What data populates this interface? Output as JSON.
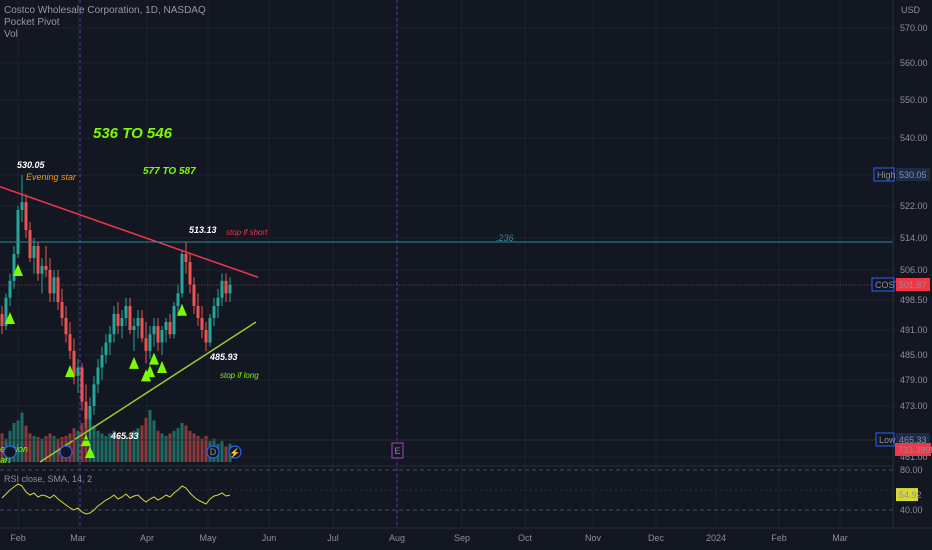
{
  "legend": {
    "symbol_line": "Costco Wholesale Corporation, 1D, NASDAQ",
    "indicator_1": "Pocket Pivot",
    "indicator_2": "Vol"
  },
  "currency": "USD",
  "annotations": {
    "target_big": "536 TO  546",
    "target_small": "577 TO 587",
    "evening_star": "Evening star",
    "stop_short": "stop if short",
    "stop_long": "stop if long",
    "fib_level": ".236",
    "decision_fragment": "ecision",
    "start_fragment": "art"
  },
  "price_labels": {
    "p530": "530.05",
    "p513": "513.13",
    "p485": "485.93",
    "p465": "465.33"
  },
  "badges": {
    "high_label": "High",
    "high_value": "530.05",
    "cost_label": "COST",
    "cost_value": "501.87",
    "low_label": "Low",
    "low_value": "465.33",
    "vol_value": "733.399K",
    "rsi_value": "54.92"
  },
  "event_markers": {
    "d_marker": "D",
    "e_marker": "E"
  },
  "rsi_legend": "RSI   close, SMA, 14, 2",
  "colors": {
    "background": "#131722",
    "up": "#26a69a",
    "down": "#ef5350",
    "annotation_green": "#7cfc00",
    "annotation_orange": "#ff9800",
    "resistance_line": "#f23645",
    "support_line": "#9acd32",
    "fib_line": "#2b8a99",
    "rsi_line": "#d9d936"
  },
  "chart_data": {
    "type": "candlestick",
    "symbol": "Costco Wholesale Corporation, 1D, NASDAQ",
    "price_axis_ticks": [
      570.0,
      560.0,
      550.0,
      540.0,
      530.05,
      522.0,
      514.0,
      506.0,
      501.87,
      498.5,
      491.0,
      485.0,
      479.0,
      473.0,
      465.33,
      461.0
    ],
    "time_axis_ticks": [
      "Feb",
      "Mar",
      "Apr",
      "May",
      "Jun",
      "Jul",
      "Aug",
      "Sep",
      "Oct",
      "Nov",
      "Dec",
      "2024",
      "Feb",
      "Mar"
    ],
    "high": 530.05,
    "low": 465.33,
    "last": 501.87,
    "fib_236": 513.0,
    "candles": [
      [
        0,
        495.0,
        497.0,
        490.0,
        492.0
      ],
      [
        1,
        492.0,
        500.0,
        491.0,
        499.0
      ],
      [
        2,
        499.0,
        505.0,
        497.0,
        503.0
      ],
      [
        3,
        503.0,
        512.0,
        501.0,
        510.0
      ],
      [
        4,
        510.0,
        522.0,
        509.0,
        521.0
      ],
      [
        5,
        521.0,
        530.05,
        518.0,
        523.0
      ],
      [
        6,
        523.0,
        525.0,
        514.0,
        516.0
      ],
      [
        7,
        516.0,
        518.0,
        508.0,
        509.0
      ],
      [
        8,
        509.0,
        514.0,
        505.0,
        512.0
      ],
      [
        9,
        512.0,
        513.0,
        503.0,
        505.0
      ],
      [
        10,
        505.0,
        509.0,
        500.0,
        507.0
      ],
      [
        11,
        507.0,
        512.0,
        504.0,
        506.0
      ],
      [
        12,
        506.0,
        509.0,
        498.0,
        500.0
      ],
      [
        13,
        500.0,
        506.0,
        498.0,
        504.0
      ],
      [
        14,
        504.0,
        506.0,
        496.0,
        498.0
      ],
      [
        15,
        498.0,
        501.0,
        492.0,
        494.0
      ],
      [
        16,
        494.0,
        497.0,
        488.0,
        490.0
      ],
      [
        17,
        490.0,
        493.0,
        484.0,
        486.0
      ],
      [
        18,
        486.0,
        489.0,
        478.0,
        480.0
      ],
      [
        19,
        480.0,
        484.0,
        476.0,
        482.0
      ],
      [
        20,
        482.0,
        483.0,
        472.0,
        474.0
      ],
      [
        21,
        474.0,
        478.0,
        468.0,
        470.0
      ],
      [
        22,
        470.0,
        475.0,
        465.33,
        473.0
      ],
      [
        23,
        473.0,
        480.0,
        471.0,
        478.0
      ],
      [
        24,
        478.0,
        484.0,
        476.0,
        482.0
      ],
      [
        25,
        482.0,
        487.0,
        479.0,
        485.0
      ],
      [
        26,
        485.0,
        490.0,
        483.0,
        488.0
      ],
      [
        27,
        488.0,
        492.0,
        485.0,
        490.0
      ],
      [
        28,
        490.0,
        497.0,
        488.0,
        495.0
      ],
      [
        29,
        495.0,
        498.0,
        490.0,
        492.0
      ],
      [
        30,
        492.0,
        496.0,
        489.0,
        494.0
      ],
      [
        31,
        494.0,
        499.0,
        492.0,
        497.0
      ],
      [
        32,
        497.0,
        499.0,
        490.0,
        491.0
      ],
      [
        33,
        491.0,
        494.0,
        486.0,
        492.0
      ],
      [
        34,
        492.0,
        496.0,
        489.0,
        494.0
      ],
      [
        35,
        494.0,
        496.0,
        488.0,
        489.0
      ],
      [
        36,
        489.0,
        493.0,
        483.0,
        486.0
      ],
      [
        37,
        486.0,
        492.0,
        484.0,
        490.0
      ],
      [
        38,
        490.0,
        494.0,
        487.0,
        492.0
      ],
      [
        39,
        492.0,
        494.0,
        486.0,
        488.0
      ],
      [
        40,
        488.0,
        492.0,
        485.0,
        491.0
      ],
      [
        41,
        491.0,
        494.0,
        488.0,
        493.0
      ],
      [
        42,
        493.0,
        495.0,
        489.0,
        490.0
      ],
      [
        43,
        490.0,
        498.0,
        489.0,
        497.0
      ],
      [
        44,
        497.0,
        502.0,
        495.0,
        500.0
      ],
      [
        45,
        500.0,
        511.0,
        499.0,
        510.0
      ],
      [
        46,
        510.0,
        513.13,
        505.0,
        508.0
      ],
      [
        47,
        508.0,
        510.0,
        500.0,
        502.0
      ],
      [
        48,
        502.0,
        504.0,
        495.0,
        497.0
      ],
      [
        49,
        497.0,
        500.0,
        492.0,
        494.0
      ],
      [
        50,
        494.0,
        497.0,
        489.0,
        491.0
      ],
      [
        51,
        491.0,
        493.0,
        485.93,
        488.0
      ],
      [
        52,
        488.0,
        495.0,
        487.0,
        494.0
      ],
      [
        53,
        494.0,
        499.0,
        492.0,
        497.0
      ],
      [
        54,
        497.0,
        501.0,
        494.0,
        499.0
      ],
      [
        55,
        499.0,
        505.0,
        497.0,
        503.0
      ],
      [
        56,
        503.0,
        505.0,
        498.0,
        500.0
      ],
      [
        57,
        500.0,
        504.0,
        498.0,
        501.87
      ]
    ],
    "pocket_pivot_signals": [
      2,
      4,
      17,
      21,
      22,
      33,
      36,
      37,
      38,
      40,
      45
    ],
    "volume_ratio": [
      0.55,
      0.45,
      0.6,
      0.75,
      0.8,
      0.95,
      0.7,
      0.55,
      0.5,
      0.48,
      0.45,
      0.5,
      0.55,
      0.5,
      0.45,
      0.48,
      0.5,
      0.55,
      0.65,
      0.6,
      0.75,
      0.85,
      0.9,
      0.7,
      0.6,
      0.55,
      0.5,
      0.55,
      0.6,
      0.5,
      0.45,
      0.5,
      0.55,
      0.6,
      0.65,
      0.7,
      0.85,
      1.0,
      0.8,
      0.6,
      0.55,
      0.5,
      0.55,
      0.6,
      0.65,
      0.75,
      0.7,
      0.6,
      0.55,
      0.5,
      0.45,
      0.5,
      0.4,
      0.45,
      0.35,
      0.4,
      0.3,
      0.35
    ],
    "rsi": {
      "ticks": [
        80.0,
        54.92,
        40.0
      ],
      "values": [
        52,
        56,
        60,
        63,
        66,
        64,
        58,
        55,
        57,
        53,
        55,
        54,
        52,
        55,
        51,
        48,
        45,
        42,
        40,
        42,
        38,
        36,
        37,
        40,
        44,
        47,
        50,
        52,
        55,
        51,
        53,
        56,
        52,
        54,
        55,
        51,
        48,
        51,
        53,
        50,
        52,
        55,
        53,
        57,
        60,
        64,
        62,
        57,
        53,
        50,
        48,
        46,
        51,
        54,
        55,
        57,
        54,
        54.92
      ]
    }
  }
}
